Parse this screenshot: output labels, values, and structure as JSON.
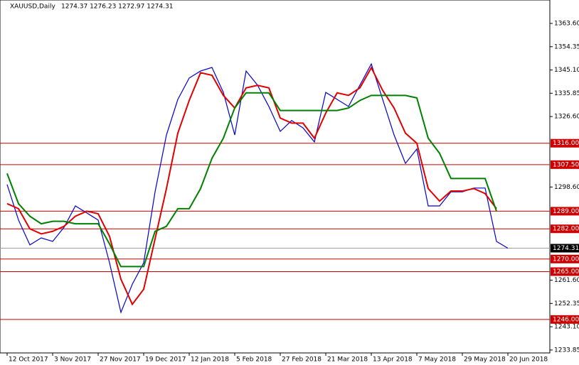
{
  "chart_data": {
    "type": "line",
    "title": "XAUUSD,Daily",
    "subtitle": "1274.37 1276.23 1272.97 1274.31",
    "categories": [
      "12 Oct 2017",
      null,
      null,
      null,
      "3 Nov 2017",
      null,
      null,
      null,
      "27 Nov 2017",
      null,
      null,
      null,
      "19 Dec 2017",
      null,
      null,
      null,
      "12 Jan 2018",
      null,
      null,
      null,
      "5 Feb 2018",
      null,
      null,
      null,
      "27 Feb 2018",
      null,
      null,
      null,
      "21 Mar 2018",
      null,
      null,
      null,
      "13 Apr 2018",
      null,
      null,
      null,
      "7 May 2018",
      null,
      null,
      null,
      "29 May 2018",
      null,
      null,
      null,
      "20 Jun 2018",
      null
    ],
    "series": [
      {
        "color": "#0000cc",
        "values": [
          1299.6,
          1285.5,
          1275.6,
          1278.4,
          1277,
          1282.6,
          1291.1,
          1288.3,
          1285.5,
          1268.5,
          1248.8,
          1260,
          1268.5,
          1296.7,
          1319.3,
          1333.4,
          1341.9,
          1344.7,
          1346.1,
          1336.2,
          1319.3,
          1344.7,
          1339.1,
          1330.6,
          1320.7,
          1325,
          1322.1,
          1316.5,
          1336.2,
          1333.4,
          1330.6,
          1339.1,
          1347.5,
          1333.4,
          1319.3,
          1308,
          1313.7,
          1291.1,
          1291.1,
          1296.7,
          1296.7,
          1298.2,
          1298.2,
          1277,
          1274.3,
          null
        ]
      },
      {
        "color": "#e00000",
        "values": [
          1292,
          1290,
          1282,
          1280,
          1281,
          1283,
          1287,
          1289,
          1288,
          1279,
          1262,
          1252,
          1258,
          1278,
          1298,
          1320,
          1333,
          1344,
          1343,
          1335,
          1330,
          1338,
          1339,
          1338,
          1326,
          1324,
          1324,
          1318,
          1328,
          1336,
          1335,
          1338,
          1346,
          1337,
          1330,
          1320,
          1316,
          1298,
          1293,
          1297,
          1297,
          1298,
          1296,
          1290,
          null,
          null
        ]
      },
      {
        "color": "#008000",
        "values": [
          1304,
          1292,
          1287,
          1284,
          1285,
          1285,
          1284,
          1284,
          1284,
          1276,
          1267,
          1267,
          1267,
          1281,
          1283,
          1290,
          1290,
          1298,
          1310,
          1318,
          1330,
          1336,
          1336,
          1336,
          1329,
          1329,
          1329,
          1329,
          1329,
          1329,
          1330,
          1333,
          1335,
          1335,
          1335,
          1335,
          1334,
          1318,
          1312,
          1302,
          1302,
          1302,
          1302,
          1289,
          null,
          null
        ]
      }
    ],
    "ylim": [
      1232.7,
      1372.9
    ],
    "yticks": [
      {
        "value": 1363.6,
        "label": "1363.60"
      },
      {
        "value": 1354.35,
        "label": "1354.35"
      },
      {
        "value": 1345.1,
        "label": "1345.10"
      },
      {
        "value": 1335.85,
        "label": "1335.85"
      },
      {
        "value": 1326.6,
        "label": "1326.60"
      },
      {
        "value": 1298.6,
        "label": "1298.60"
      },
      {
        "value": 1261.6,
        "label": "1261.60"
      },
      {
        "value": 1252.35,
        "label": "1252.35"
      },
      {
        "value": 1243.1,
        "label": "1243.10"
      },
      {
        "value": 1233.85,
        "label": "1233.85"
      }
    ],
    "levels": [
      {
        "value": 1316,
        "label": "1316.00"
      },
      {
        "value": 1307.5,
        "label": "1307.50"
      },
      {
        "value": 1289,
        "label": "1289.00"
      },
      {
        "value": 1282,
        "label": "1282.00"
      },
      {
        "value": 1270,
        "label": "1270.00"
      },
      {
        "value": 1265,
        "label": "1265.00"
      },
      {
        "value": 1246,
        "label": "1246.00"
      }
    ],
    "level_color": "#cc0000",
    "current_price": 1274.31
  }
}
